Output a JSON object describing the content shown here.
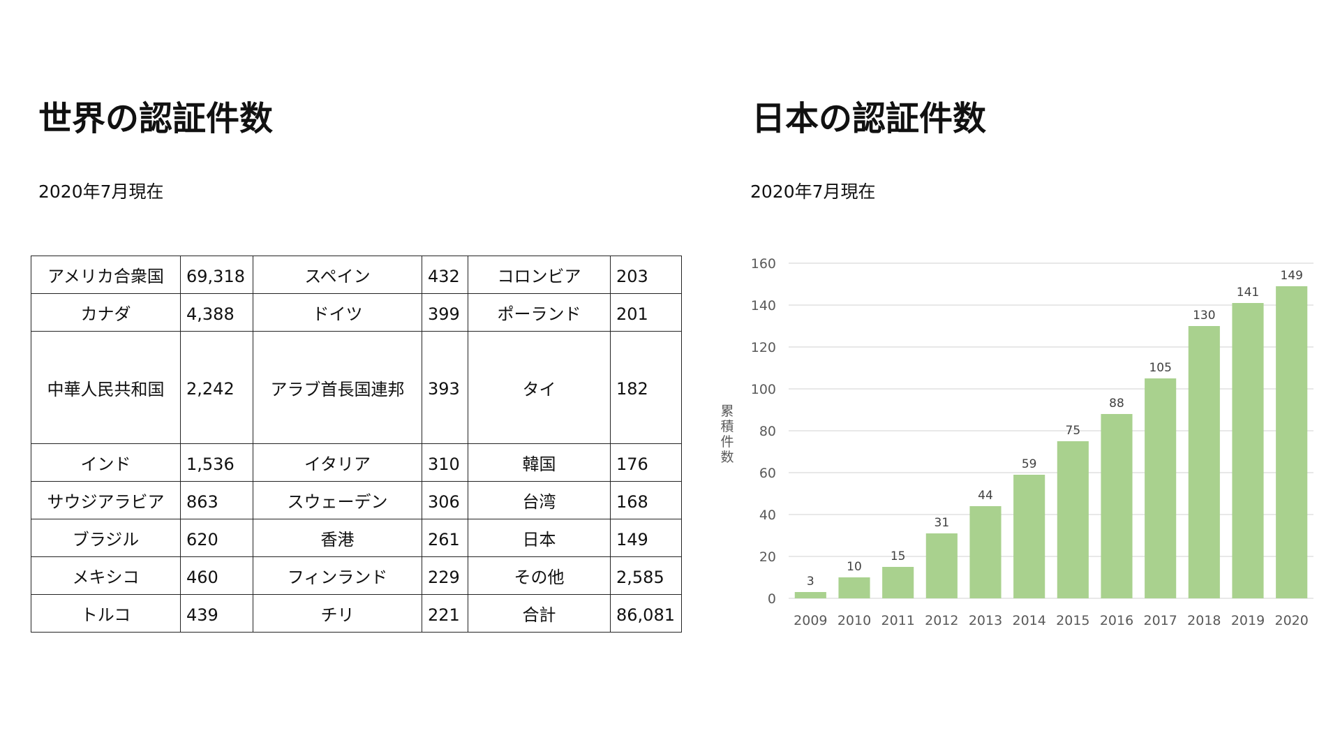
{
  "world": {
    "title": "世界の認証件数",
    "subtitle": "2020年7月現在",
    "rows": [
      [
        {
          "name": "アメリカ合衆国",
          "value": "69,318"
        },
        {
          "name": "スペイン",
          "value": "432"
        },
        {
          "name": "コロンビア",
          "value": "203"
        }
      ],
      [
        {
          "name": "カナダ",
          "value": "4,388"
        },
        {
          "name": "ドイツ",
          "value": "399"
        },
        {
          "name": "ポーランド",
          "value": "201"
        }
      ],
      [
        {
          "name": "中華人民共和国",
          "value": "2,242"
        },
        {
          "name": "アラブ首長国連邦",
          "value": "393"
        },
        {
          "name": "タイ",
          "value": "182"
        }
      ],
      [
        {
          "name": "インド",
          "value": "1,536"
        },
        {
          "name": "イタリア",
          "value": "310"
        },
        {
          "name": "韓国",
          "value": "176"
        }
      ],
      [
        {
          "name": "サウジアラビア",
          "value": "863"
        },
        {
          "name": "スウェーデン",
          "value": "306"
        },
        {
          "name": "台湾",
          "value": "168"
        }
      ],
      [
        {
          "name": "ブラジル",
          "value": "620"
        },
        {
          "name": "香港",
          "value": "261"
        },
        {
          "name": "日本",
          "value": "149"
        }
      ],
      [
        {
          "name": "メキシコ",
          "value": "460"
        },
        {
          "name": "フィンランド",
          "value": "229"
        },
        {
          "name": "その他",
          "value": "2,585"
        }
      ],
      [
        {
          "name": "トルコ",
          "value": "439"
        },
        {
          "name": "チリ",
          "value": "221"
        },
        {
          "name": "合計",
          "value": "86,081"
        }
      ]
    ]
  },
  "japan": {
    "title": "日本の認証件数",
    "subtitle": "2020年7月現在"
  },
  "chart_data": {
    "type": "bar",
    "categories": [
      "2009",
      "2010",
      "2011",
      "2012",
      "2013",
      "2014",
      "2015",
      "2016",
      "2017",
      "2018",
      "2019",
      "2020"
    ],
    "values": [
      3,
      10,
      15,
      31,
      44,
      59,
      75,
      88,
      105,
      130,
      141,
      149
    ],
    "ylabel": "累積件数",
    "ylim": [
      0,
      160
    ],
    "yticks": [
      0,
      20,
      40,
      60,
      80,
      100,
      120,
      140,
      160
    ],
    "grid": true,
    "data_labels": true,
    "colors": {
      "bar": "#a9d18e",
      "grid": "#d9d9d9",
      "tick_text": "#595959",
      "label_text": "#404040"
    }
  }
}
